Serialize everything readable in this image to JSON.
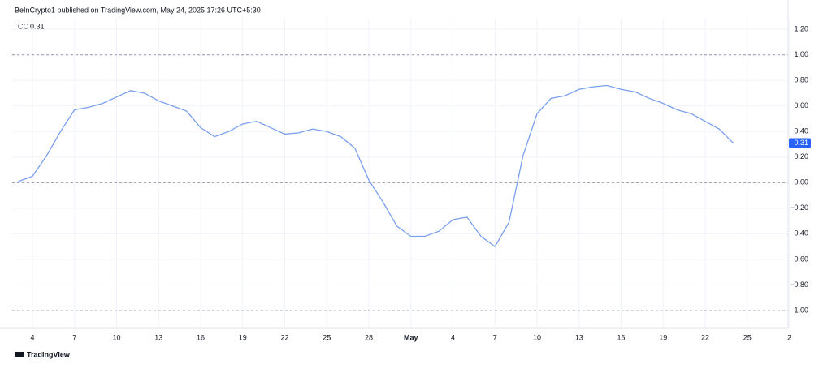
{
  "header": "BeInCrypto1 published on TradingView.com, May 24, 2025 17:26 UTC+5:30",
  "footer": "TradingView",
  "chart_data": {
    "type": "line",
    "categories": [
      null,
      "4",
      null,
      null,
      "7",
      null,
      null,
      "10",
      null,
      null,
      "13",
      null,
      null,
      "16",
      null,
      null,
      "19",
      null,
      null,
      "22",
      null,
      null,
      "25",
      null,
      null,
      "28",
      null,
      null,
      "May",
      null,
      null,
      "4",
      null,
      null,
      "7",
      null,
      null,
      "10",
      null,
      null,
      "13",
      null,
      null,
      "16",
      null,
      null,
      "19",
      null,
      null,
      "22",
      null,
      null,
      "25",
      null,
      null,
      "2"
    ],
    "series": [
      {
        "name": "CC",
        "color": "#7a9ff0",
        "values": [
          0.01,
          0.05,
          0.21,
          0.4,
          0.57,
          0.59,
          0.62,
          0.67,
          0.72,
          0.7,
          0.64,
          0.6,
          0.56,
          0.43,
          0.36,
          0.4,
          0.46,
          0.48,
          0.43,
          0.38,
          0.39,
          0.42,
          0.4,
          0.36,
          0.27,
          0.02,
          -0.15,
          -0.34,
          -0.42,
          -0.42,
          -0.38,
          -0.29,
          -0.27,
          -0.42,
          -0.5,
          -0.31,
          0.21,
          0.54,
          0.66,
          0.68,
          0.73,
          0.75,
          0.76,
          0.73,
          0.71,
          0.66,
          0.62,
          0.57,
          0.54,
          0.48,
          0.42,
          0.31,
          null,
          null,
          null,
          null
        ]
      }
    ],
    "ylim": [
      -1.14,
      1.29
    ],
    "yticks": [
      {
        "value": 1.2,
        "label": "1.20"
      },
      {
        "value": 1,
        "label": "1.00"
      },
      {
        "value": 0.8,
        "label": "0.80"
      },
      {
        "value": 0.6,
        "label": "0.60"
      },
      {
        "value": 0.4,
        "label": "0.40"
      },
      {
        "value": 0.2,
        "label": "0.20"
      },
      {
        "value": 0,
        "label": "0.00"
      },
      {
        "value": -0.2,
        "label": "−0.20"
      },
      {
        "value": -0.4,
        "label": "−0.40"
      },
      {
        "value": -0.6,
        "label": "−0.60"
      },
      {
        "value": -0.8,
        "label": "−0.80"
      },
      {
        "value": -1,
        "label": "−1.00"
      }
    ],
    "hlines": [
      1,
      0,
      -1
    ],
    "grid": true,
    "badge_color": "#2962ff"
  }
}
